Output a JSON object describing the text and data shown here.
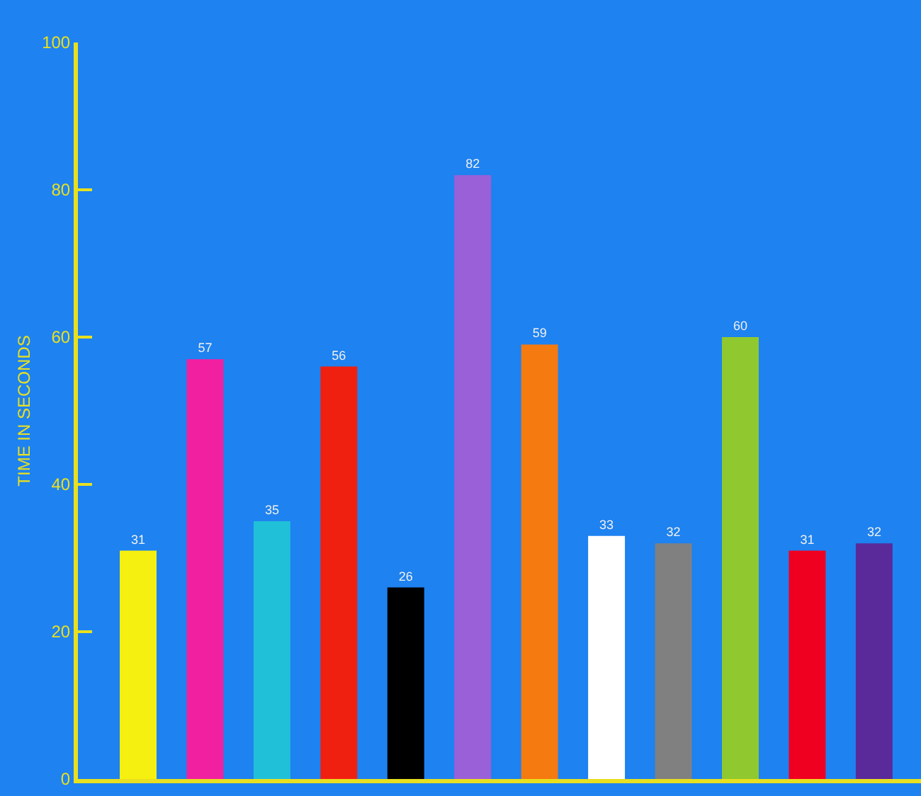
{
  "chart_data": {
    "type": "bar",
    "ylabel": "TIME IN SECONDS",
    "categories": [
      null,
      null,
      null,
      null,
      null,
      null,
      null,
      null,
      null,
      null,
      null,
      null
    ],
    "values": [
      31,
      57,
      35,
      56,
      26,
      82,
      59,
      33,
      32,
      60,
      31,
      32
    ],
    "colors": [
      "#f5f010",
      "#f020a0",
      "#20c0d8",
      "#f02010",
      "#000000",
      "#9a60d8",
      "#f57a10",
      "#ffffff",
      "#808080",
      "#90c830",
      "#f00020",
      "#5a2a9a"
    ],
    "ylim": [
      0,
      100
    ],
    "yticks": [
      0,
      20,
      40,
      60,
      80,
      100
    ],
    "data_labels": true,
    "grid": false,
    "tick_labels": "y"
  }
}
